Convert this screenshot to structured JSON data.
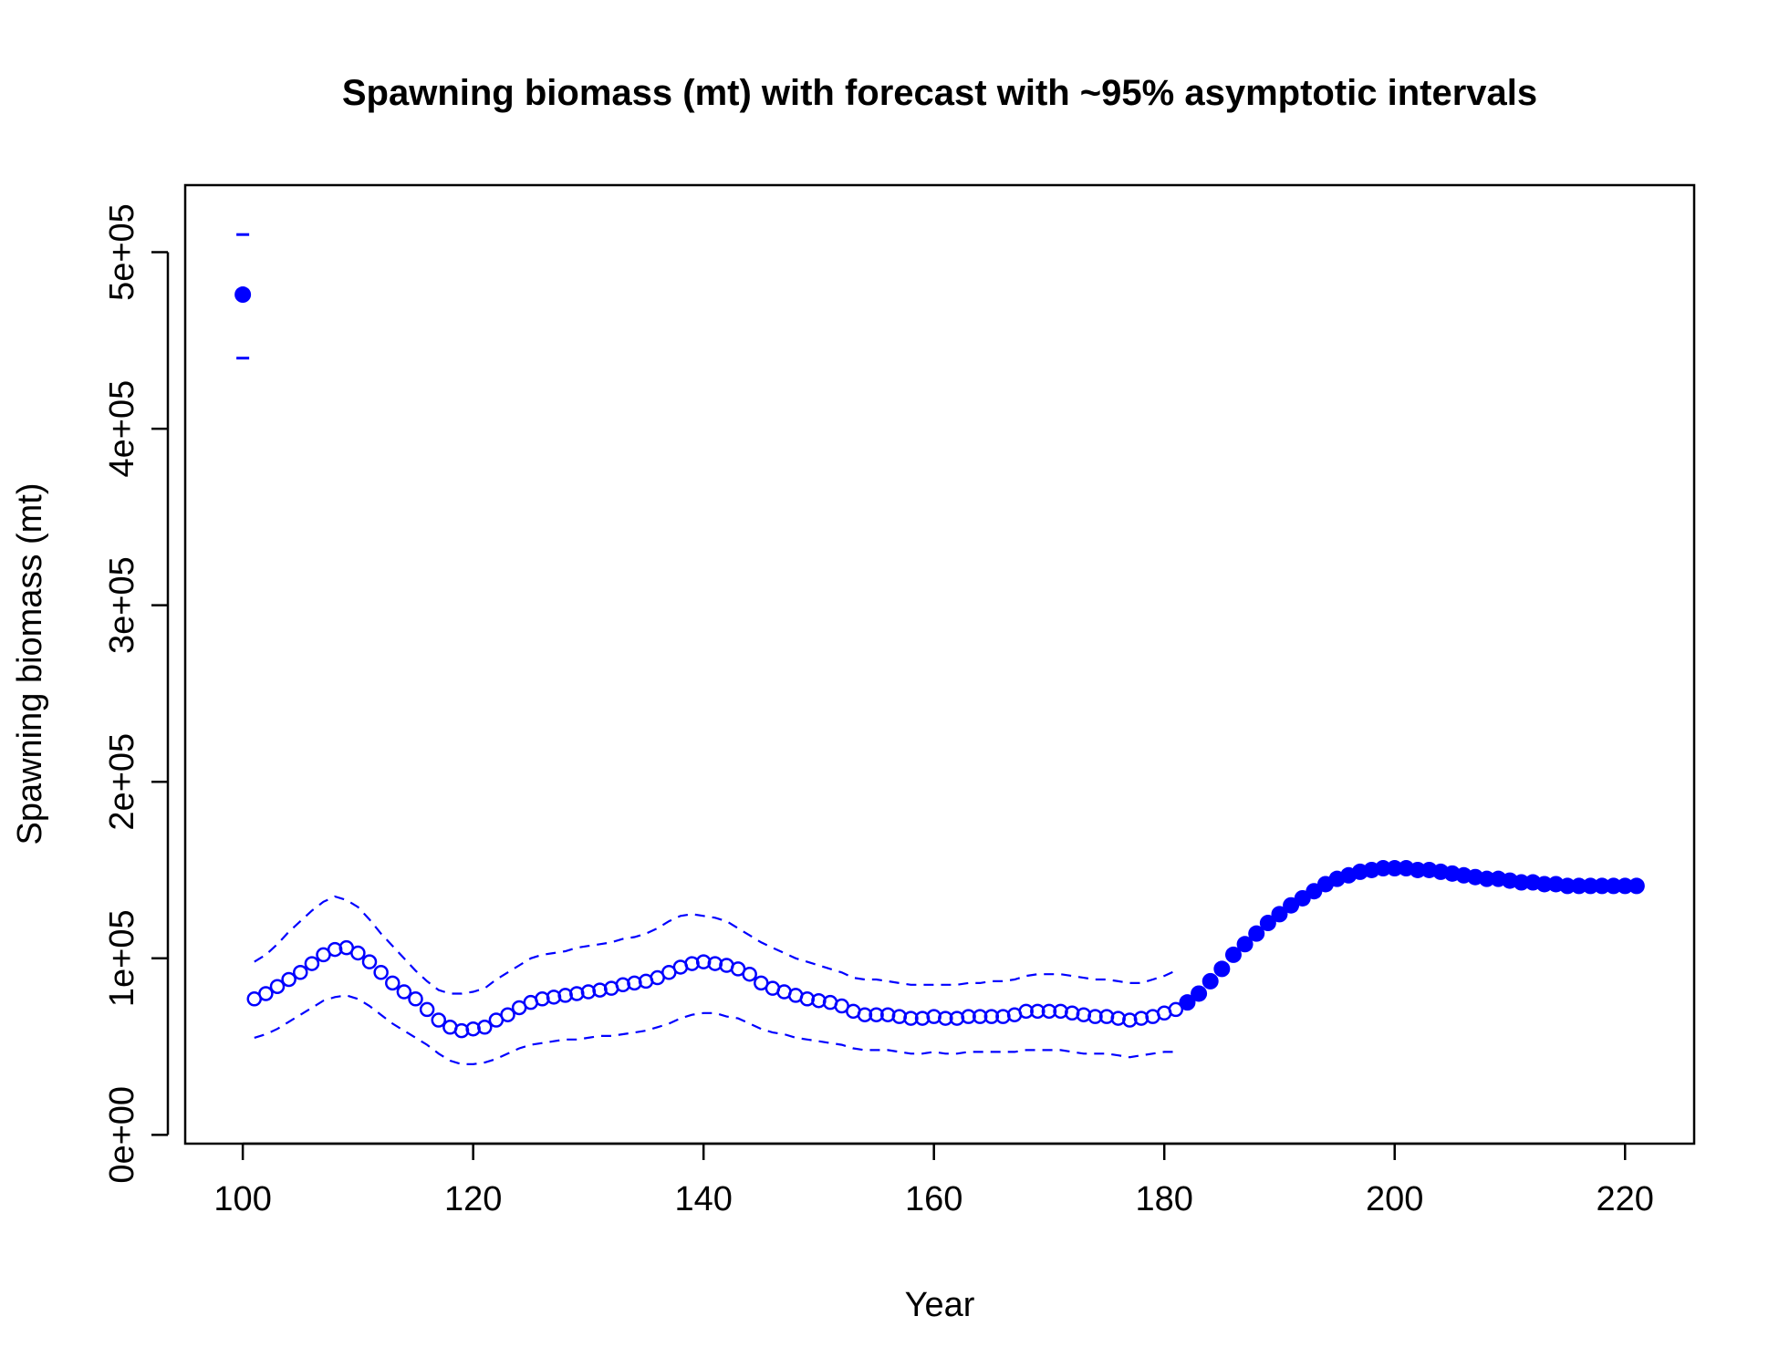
{
  "chart_data": {
    "type": "scatter",
    "title": "Spawning biomass (mt) with forecast with ~95% asymptotic intervals",
    "xlabel": "Year",
    "ylabel": "Spawning biomass (mt)",
    "xlim": [
      95,
      226
    ],
    "ylim": [
      -5000,
      538000
    ],
    "x_ticks": [
      100,
      120,
      140,
      160,
      180,
      200,
      220
    ],
    "x_tick_labels": [
      "100",
      "120",
      "140",
      "160",
      "180",
      "200",
      "220"
    ],
    "y_ticks": [
      0,
      100000,
      200000,
      300000,
      400000,
      500000
    ],
    "y_tick_labels": [
      "0e+00",
      "1e+05",
      "2e+05",
      "3e+05",
      "4e+05",
      "5e+05"
    ],
    "grid": false,
    "legend": "none",
    "color": "#0000ff",
    "series": [
      {
        "role": "virgin",
        "marker": "filled-circle",
        "x": [
          100
        ],
        "y": [
          476000
        ],
        "upper": [
          510000
        ],
        "lower": [
          440000
        ]
      },
      {
        "role": "estimated",
        "marker": "open-circle",
        "x": [
          101,
          102,
          103,
          104,
          105,
          106,
          107,
          108,
          109,
          110,
          111,
          112,
          113,
          114,
          115,
          116,
          117,
          118,
          119,
          120,
          121,
          122,
          123,
          124,
          125,
          126,
          127,
          128,
          129,
          130,
          131,
          132,
          133,
          134,
          135,
          136,
          137,
          138,
          139,
          140,
          141,
          142,
          143,
          144,
          145,
          146,
          147,
          148,
          149,
          150,
          151,
          152,
          153,
          154,
          155,
          156,
          157,
          158,
          159,
          160,
          161,
          162,
          163,
          164,
          165,
          166,
          167,
          168,
          169,
          170,
          171,
          172,
          173,
          174,
          175,
          176,
          177,
          178,
          179,
          180,
          181
        ],
        "y": [
          77000,
          80000,
          84000,
          88000,
          92000,
          97000,
          102000,
          105000,
          106000,
          103000,
          98000,
          92000,
          86000,
          81000,
          77000,
          71000,
          65000,
          61000,
          59000,
          60000,
          61000,
          65000,
          68000,
          72000,
          75000,
          77000,
          78000,
          79000,
          80000,
          81000,
          82000,
          83000,
          85000,
          86000,
          87000,
          89000,
          92000,
          95000,
          97000,
          98000,
          97000,
          96000,
          94000,
          91000,
          86000,
          83000,
          81000,
          79000,
          77000,
          76000,
          75000,
          73000,
          70000,
          68000,
          68000,
          68000,
          67000,
          66000,
          66000,
          67000,
          66000,
          66000,
          67000,
          67000,
          67000,
          67000,
          68000,
          70000,
          70000,
          70000,
          70000,
          69000,
          68000,
          67000,
          67000,
          66000,
          65000,
          66000,
          67000,
          69000,
          71000
        ],
        "upper": [
          98000,
          102000,
          108000,
          115000,
          121000,
          127000,
          132000,
          135000,
          133000,
          129000,
          122000,
          114000,
          107000,
          100000,
          93000,
          87000,
          82000,
          80000,
          80000,
          81000,
          83000,
          88000,
          92000,
          96000,
          100000,
          102000,
          103000,
          104000,
          106000,
          107000,
          108000,
          109000,
          111000,
          112000,
          114000,
          117000,
          121000,
          124000,
          125000,
          124000,
          123000,
          121000,
          117000,
          113000,
          109000,
          106000,
          103000,
          100000,
          98000,
          96000,
          94000,
          92000,
          89000,
          88000,
          88000,
          87000,
          86000,
          85000,
          85000,
          85000,
          85000,
          85000,
          86000,
          86000,
          87000,
          87000,
          88000,
          90000,
          91000,
          91000,
          91000,
          90000,
          89000,
          88000,
          88000,
          87000,
          86000,
          86000,
          88000,
          90000,
          93000
        ],
        "lower": [
          55000,
          57000,
          60000,
          64000,
          68000,
          72000,
          76000,
          78000,
          79000,
          77000,
          73000,
          68000,
          63000,
          59000,
          55000,
          51000,
          46000,
          42000,
          40000,
          40000,
          41000,
          43000,
          46000,
          49000,
          51000,
          52000,
          53000,
          54000,
          54000,
          55000,
          56000,
          56000,
          57000,
          58000,
          59000,
          61000,
          63000,
          66000,
          68000,
          69000,
          69000,
          67000,
          66000,
          63000,
          60000,
          58000,
          57000,
          55000,
          54000,
          53000,
          52000,
          51000,
          49000,
          48000,
          48000,
          48000,
          47000,
          46000,
          46000,
          47000,
          46000,
          46000,
          47000,
          47000,
          47000,
          47000,
          47000,
          48000,
          48000,
          48000,
          48000,
          47000,
          46000,
          46000,
          46000,
          45000,
          44000,
          45000,
          46000,
          47000,
          47000
        ]
      },
      {
        "role": "forecast",
        "marker": "filled-circle",
        "x": [
          182,
          183,
          184,
          185,
          186,
          187,
          188,
          189,
          190,
          191,
          192,
          193,
          194,
          195,
          196,
          197,
          198,
          199,
          200,
          201,
          202,
          203,
          204,
          205,
          206,
          207,
          208,
          209,
          210,
          211,
          212,
          213,
          214,
          215,
          216,
          217,
          218,
          219,
          220,
          221
        ],
        "y": [
          75000,
          80000,
          87000,
          94000,
          102000,
          108000,
          114000,
          120000,
          125000,
          130000,
          134000,
          138000,
          142000,
          145000,
          147000,
          149000,
          150000,
          151000,
          151000,
          151000,
          150000,
          150000,
          149000,
          148000,
          147000,
          146000,
          145000,
          145000,
          144000,
          143000,
          143000,
          142000,
          142000,
          141000,
          141000,
          141000,
          141000,
          141000,
          141000,
          141000
        ]
      }
    ]
  }
}
